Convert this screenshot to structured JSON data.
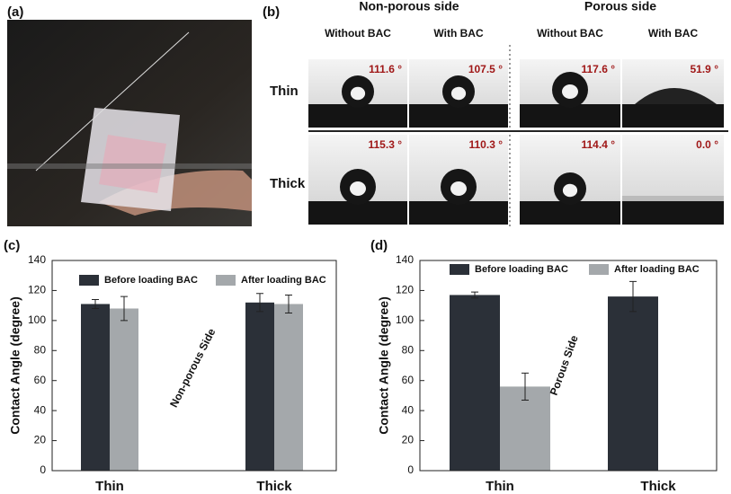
{
  "figure": {
    "a": {
      "label": "(a)"
    },
    "b": {
      "label": "(b)",
      "sides": [
        "Non-porous side",
        "Porous side"
      ],
      "columns": [
        "Without BAC",
        "With BAC",
        "Without BAC",
        "With BAC"
      ],
      "rows": [
        "Thin",
        "Thick"
      ],
      "angles": [
        [
          "111.6 °",
          "107.5 °",
          "117.6 °",
          "51.9 °"
        ],
        [
          "115.3 °",
          "110.3 °",
          "114.4 °",
          "0.0 °"
        ]
      ]
    }
  },
  "chart_data": [
    {
      "type": "bar",
      "panel": "(c)",
      "ylabel": "Contact Angle (degree)",
      "annotation": "Non-porous Side",
      "categories": [
        "Thin",
        "Thick"
      ],
      "series": [
        {
          "name": "Before loading BAC",
          "color": "#2b3038",
          "values": [
            111,
            112
          ],
          "errors": [
            3,
            6
          ]
        },
        {
          "name": "After loading BAC",
          "color": "#a4a8ab",
          "values": [
            108,
            111
          ],
          "errors": [
            8,
            6
          ]
        }
      ],
      "ylim": [
        0,
        140
      ],
      "yticks": [
        0,
        20,
        40,
        60,
        80,
        100,
        120,
        140
      ],
      "legend": "top"
    },
    {
      "type": "bar",
      "panel": "(d)",
      "ylabel": "Contact Angle (degree)",
      "annotation": "Porous Side",
      "categories": [
        "Thin",
        "Thick"
      ],
      "series": [
        {
          "name": "Before loading BAC",
          "color": "#2b3038",
          "values": [
            117,
            116
          ],
          "errors": [
            2,
            10
          ]
        },
        {
          "name": "After loading BAC",
          "color": "#a4a8ab",
          "values": [
            56,
            0
          ],
          "errors": [
            9,
            0
          ]
        }
      ],
      "ylim": [
        0,
        140
      ],
      "yticks": [
        0,
        20,
        40,
        60,
        80,
        100,
        120,
        140
      ],
      "legend": "top"
    }
  ]
}
